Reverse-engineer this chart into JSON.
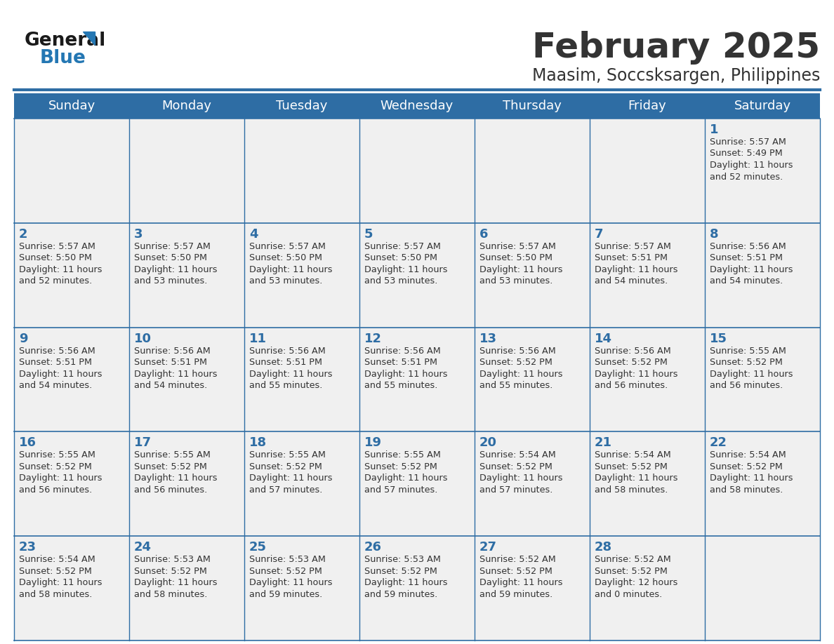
{
  "title": "February 2025",
  "subtitle": "Maasim, Soccsksargen, Philippines",
  "header_bg": "#2E6DA4",
  "header_text_color": "#FFFFFF",
  "cell_bg": "#F0F0F0",
  "day_number_color": "#2E6DA4",
  "text_color": "#333333",
  "line_color": "#2E6DA4",
  "days_of_week": [
    "Sunday",
    "Monday",
    "Tuesday",
    "Wednesday",
    "Thursday",
    "Friday",
    "Saturday"
  ],
  "calendar_data": [
    [
      null,
      null,
      null,
      null,
      null,
      null,
      {
        "day": 1,
        "sunrise": "5:57 AM",
        "sunset": "5:49 PM",
        "daylight": "11 hours",
        "daylight2": "and 52 minutes."
      }
    ],
    [
      {
        "day": 2,
        "sunrise": "5:57 AM",
        "sunset": "5:50 PM",
        "daylight": "11 hours",
        "daylight2": "and 52 minutes."
      },
      {
        "day": 3,
        "sunrise": "5:57 AM",
        "sunset": "5:50 PM",
        "daylight": "11 hours",
        "daylight2": "and 53 minutes."
      },
      {
        "day": 4,
        "sunrise": "5:57 AM",
        "sunset": "5:50 PM",
        "daylight": "11 hours",
        "daylight2": "and 53 minutes."
      },
      {
        "day": 5,
        "sunrise": "5:57 AM",
        "sunset": "5:50 PM",
        "daylight": "11 hours",
        "daylight2": "and 53 minutes."
      },
      {
        "day": 6,
        "sunrise": "5:57 AM",
        "sunset": "5:50 PM",
        "daylight": "11 hours",
        "daylight2": "and 53 minutes."
      },
      {
        "day": 7,
        "sunrise": "5:57 AM",
        "sunset": "5:51 PM",
        "daylight": "11 hours",
        "daylight2": "and 54 minutes."
      },
      {
        "day": 8,
        "sunrise": "5:56 AM",
        "sunset": "5:51 PM",
        "daylight": "11 hours",
        "daylight2": "and 54 minutes."
      }
    ],
    [
      {
        "day": 9,
        "sunrise": "5:56 AM",
        "sunset": "5:51 PM",
        "daylight": "11 hours",
        "daylight2": "and 54 minutes."
      },
      {
        "day": 10,
        "sunrise": "5:56 AM",
        "sunset": "5:51 PM",
        "daylight": "11 hours",
        "daylight2": "and 54 minutes."
      },
      {
        "day": 11,
        "sunrise": "5:56 AM",
        "sunset": "5:51 PM",
        "daylight": "11 hours",
        "daylight2": "and 55 minutes."
      },
      {
        "day": 12,
        "sunrise": "5:56 AM",
        "sunset": "5:51 PM",
        "daylight": "11 hours",
        "daylight2": "and 55 minutes."
      },
      {
        "day": 13,
        "sunrise": "5:56 AM",
        "sunset": "5:52 PM",
        "daylight": "11 hours",
        "daylight2": "and 55 minutes."
      },
      {
        "day": 14,
        "sunrise": "5:56 AM",
        "sunset": "5:52 PM",
        "daylight": "11 hours",
        "daylight2": "and 56 minutes."
      },
      {
        "day": 15,
        "sunrise": "5:55 AM",
        "sunset": "5:52 PM",
        "daylight": "11 hours",
        "daylight2": "and 56 minutes."
      }
    ],
    [
      {
        "day": 16,
        "sunrise": "5:55 AM",
        "sunset": "5:52 PM",
        "daylight": "11 hours",
        "daylight2": "and 56 minutes."
      },
      {
        "day": 17,
        "sunrise": "5:55 AM",
        "sunset": "5:52 PM",
        "daylight": "11 hours",
        "daylight2": "and 56 minutes."
      },
      {
        "day": 18,
        "sunrise": "5:55 AM",
        "sunset": "5:52 PM",
        "daylight": "11 hours",
        "daylight2": "and 57 minutes."
      },
      {
        "day": 19,
        "sunrise": "5:55 AM",
        "sunset": "5:52 PM",
        "daylight": "11 hours",
        "daylight2": "and 57 minutes."
      },
      {
        "day": 20,
        "sunrise": "5:54 AM",
        "sunset": "5:52 PM",
        "daylight": "11 hours",
        "daylight2": "and 57 minutes."
      },
      {
        "day": 21,
        "sunrise": "5:54 AM",
        "sunset": "5:52 PM",
        "daylight": "11 hours",
        "daylight2": "and 58 minutes."
      },
      {
        "day": 22,
        "sunrise": "5:54 AM",
        "sunset": "5:52 PM",
        "daylight": "11 hours",
        "daylight2": "and 58 minutes."
      }
    ],
    [
      {
        "day": 23,
        "sunrise": "5:54 AM",
        "sunset": "5:52 PM",
        "daylight": "11 hours",
        "daylight2": "and 58 minutes."
      },
      {
        "day": 24,
        "sunrise": "5:53 AM",
        "sunset": "5:52 PM",
        "daylight": "11 hours",
        "daylight2": "and 58 minutes."
      },
      {
        "day": 25,
        "sunrise": "5:53 AM",
        "sunset": "5:52 PM",
        "daylight": "11 hours",
        "daylight2": "and 59 minutes."
      },
      {
        "day": 26,
        "sunrise": "5:53 AM",
        "sunset": "5:52 PM",
        "daylight": "11 hours",
        "daylight2": "and 59 minutes."
      },
      {
        "day": 27,
        "sunrise": "5:52 AM",
        "sunset": "5:52 PM",
        "daylight": "11 hours",
        "daylight2": "and 59 minutes."
      },
      {
        "day": 28,
        "sunrise": "5:52 AM",
        "sunset": "5:52 PM",
        "daylight": "12 hours",
        "daylight2": "and 0 minutes."
      },
      null
    ]
  ],
  "logo_text_general": "General",
  "logo_text_blue": "Blue",
  "logo_color_general": "#1a1a1a",
  "logo_color_blue": "#2477B3",
  "logo_triangle_color": "#2477B3",
  "fig_width": 11.88,
  "fig_height": 9.18,
  "dpi": 100
}
